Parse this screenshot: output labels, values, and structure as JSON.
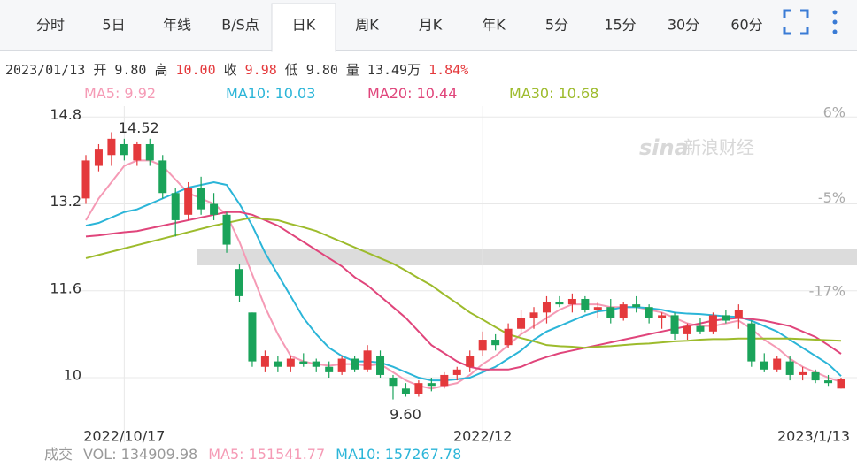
{
  "tabs": [
    "分时",
    "5日",
    "年线",
    "B/S点",
    "日K",
    "周K",
    "月K",
    "年K",
    "5分",
    "15分",
    "30分",
    "60分"
  ],
  "active_tab": 4,
  "quote": {
    "date": "2023/01/13",
    "items": [
      {
        "label": "开",
        "value": "9.80",
        "color": "#333333"
      },
      {
        "label": "高",
        "value": "10.00",
        "color": "#e4393c"
      },
      {
        "label": "收",
        "value": "9.98",
        "color": "#e4393c"
      },
      {
        "label": "低",
        "value": "9.80",
        "color": "#333333"
      },
      {
        "label": "量",
        "value": "13.49万",
        "color": "#333333"
      }
    ],
    "change": "1.84%",
    "change_color": "#e4393c"
  },
  "watermark": {
    "logo": "sina",
    "name": "新浪财经"
  },
  "chart_data": {
    "type": "candlestick",
    "categories": [
      null,
      null,
      null,
      "2022/10/17",
      null,
      null,
      null,
      null,
      null,
      null,
      null,
      null,
      null,
      null,
      null,
      null,
      null,
      null,
      null,
      null,
      null,
      null,
      null,
      null,
      null,
      null,
      null,
      null,
      null,
      null,
      null,
      "2022/12",
      null,
      null,
      null,
      null,
      null,
      null,
      null,
      null,
      null,
      null,
      null,
      null,
      null,
      null,
      null,
      null,
      null,
      null,
      null,
      null,
      null,
      null,
      null,
      null,
      null,
      null,
      null,
      "2023/1/13"
    ],
    "open": [
      13.3,
      13.9,
      14.1,
      14.3,
      14.0,
      14.3,
      14.0,
      13.4,
      13.0,
      13.5,
      13.2,
      13.0,
      12.0,
      11.2,
      10.2,
      10.3,
      10.2,
      10.3,
      10.3,
      10.2,
      10.1,
      10.35,
      10.15,
      10.4,
      10.0,
      9.8,
      9.7,
      9.9,
      9.85,
      10.05,
      10.2,
      10.5,
      10.7,
      10.6,
      10.9,
      11.1,
      11.2,
      11.4,
      11.35,
      11.45,
      11.25,
      11.3,
      11.1,
      11.35,
      11.3,
      11.1,
      11.15,
      10.8,
      10.95,
      10.85,
      11.15,
      11.1,
      11.0,
      10.3,
      10.15,
      10.3,
      10.05,
      10.1,
      9.95,
      9.8
    ],
    "high": [
      14.1,
      14.3,
      14.52,
      14.4,
      14.35,
      14.4,
      14.1,
      13.5,
      13.6,
      13.7,
      13.4,
      13.05,
      12.1,
      11.2,
      10.5,
      10.4,
      10.4,
      10.45,
      10.35,
      10.3,
      10.4,
      10.4,
      10.6,
      10.5,
      10.05,
      9.9,
      9.95,
      10.0,
      10.1,
      10.2,
      10.5,
      10.85,
      10.8,
      11.0,
      11.25,
      11.3,
      11.5,
      11.5,
      11.55,
      11.5,
      11.4,
      11.45,
      11.4,
      11.5,
      11.35,
      11.2,
      11.2,
      11.0,
      11.1,
      11.2,
      11.25,
      11.35,
      11.05,
      10.45,
      10.4,
      10.4,
      10.2,
      10.15,
      10.05,
      10.0
    ],
    "low": [
      13.2,
      13.8,
      13.9,
      14.0,
      13.9,
      13.9,
      13.3,
      12.6,
      12.9,
      13.0,
      12.9,
      12.3,
      11.4,
      10.2,
      10.1,
      10.1,
      10.1,
      10.2,
      10.1,
      10.0,
      10.05,
      10.1,
      10.1,
      10.0,
      9.6,
      9.65,
      9.65,
      9.75,
      9.8,
      9.95,
      10.1,
      10.4,
      10.5,
      10.55,
      10.8,
      10.9,
      11.0,
      11.3,
      11.2,
      11.2,
      11.1,
      11.0,
      11.05,
      11.2,
      11.0,
      10.9,
      10.7,
      10.7,
      10.8,
      10.8,
      11.0,
      10.9,
      10.2,
      10.1,
      10.1,
      9.95,
      9.95,
      9.9,
      9.85,
      9.8
    ],
    "close": [
      14.0,
      14.2,
      14.4,
      14.1,
      14.3,
      14.0,
      13.4,
      12.9,
      13.5,
      13.1,
      13.0,
      12.45,
      11.5,
      10.3,
      10.4,
      10.2,
      10.35,
      10.25,
      10.2,
      10.1,
      10.35,
      10.15,
      10.5,
      10.05,
      9.85,
      9.7,
      9.9,
      9.85,
      10.05,
      10.15,
      10.4,
      10.7,
      10.6,
      10.9,
      11.1,
      11.2,
      11.4,
      11.35,
      11.45,
      11.25,
      11.3,
      11.1,
      11.35,
      11.3,
      11.1,
      11.15,
      10.8,
      10.95,
      10.85,
      11.15,
      11.05,
      11.25,
      10.3,
      10.15,
      10.35,
      10.05,
      10.1,
      9.95,
      9.9,
      9.98
    ],
    "up_color": "#e4393c",
    "down_color": "#1aa35a",
    "series": [
      {
        "name": "MA5",
        "color": "#f59ab5",
        "values": [
          12.9,
          13.3,
          13.6,
          13.9,
          14.0,
          14.0,
          13.9,
          13.65,
          13.4,
          13.3,
          13.2,
          13.0,
          12.5,
          11.9,
          11.3,
          10.8,
          10.4,
          10.3,
          10.25,
          10.22,
          10.25,
          10.25,
          10.22,
          10.25,
          10.1,
          9.95,
          9.85,
          9.8,
          9.85,
          9.9,
          10.05,
          10.25,
          10.4,
          10.6,
          10.8,
          10.95,
          11.1,
          11.25,
          11.35,
          11.35,
          11.35,
          11.3,
          11.3,
          11.3,
          11.25,
          11.2,
          11.1,
          11.0,
          10.95,
          10.95,
          11.0,
          11.05,
          10.9,
          10.7,
          10.55,
          10.35,
          10.2,
          10.1,
          10.0,
          9.92
        ]
      },
      {
        "name": "MA10",
        "color": "#2bb5d8",
        "values": [
          12.8,
          12.85,
          12.95,
          13.05,
          13.1,
          13.2,
          13.3,
          13.4,
          13.5,
          13.55,
          13.6,
          13.55,
          13.2,
          12.8,
          12.3,
          11.9,
          11.5,
          11.1,
          10.8,
          10.55,
          10.4,
          10.3,
          10.3,
          10.28,
          10.2,
          10.1,
          10.0,
          9.95,
          9.95,
          9.97,
          10.0,
          10.1,
          10.2,
          10.35,
          10.5,
          10.7,
          10.85,
          10.95,
          11.05,
          11.15,
          11.22,
          11.25,
          11.3,
          11.3,
          11.28,
          11.25,
          11.2,
          11.18,
          11.17,
          11.15,
          11.13,
          11.12,
          11.05,
          10.95,
          10.85,
          10.7,
          10.55,
          10.4,
          10.25,
          10.03
        ]
      },
      {
        "name": "MA20",
        "color": "#e0457b",
        "values": [
          12.6,
          12.62,
          12.65,
          12.68,
          12.7,
          12.75,
          12.8,
          12.85,
          12.9,
          12.95,
          13.0,
          13.05,
          13.05,
          13.0,
          12.9,
          12.8,
          12.65,
          12.5,
          12.35,
          12.2,
          12.05,
          11.85,
          11.7,
          11.5,
          11.3,
          11.1,
          10.85,
          10.6,
          10.45,
          10.3,
          10.2,
          10.15,
          10.15,
          10.15,
          10.2,
          10.3,
          10.38,
          10.45,
          10.5,
          10.55,
          10.6,
          10.65,
          10.7,
          10.75,
          10.8,
          10.85,
          10.9,
          10.95,
          11.0,
          11.05,
          11.08,
          11.1,
          11.08,
          11.05,
          11.0,
          10.95,
          10.85,
          10.75,
          10.6,
          10.44
        ]
      },
      {
        "name": "MA30",
        "color": "#9dbb2c",
        "values": [
          12.2,
          12.26,
          12.32,
          12.38,
          12.44,
          12.5,
          12.56,
          12.62,
          12.68,
          12.74,
          12.8,
          12.85,
          12.9,
          12.95,
          12.92,
          12.9,
          12.83,
          12.77,
          12.7,
          12.6,
          12.5,
          12.4,
          12.3,
          12.2,
          12.1,
          11.97,
          11.83,
          11.7,
          11.53,
          11.37,
          11.2,
          11.07,
          10.93,
          10.8,
          10.73,
          10.67,
          10.6,
          10.58,
          10.57,
          10.55,
          10.57,
          10.58,
          10.6,
          10.62,
          10.63,
          10.65,
          10.67,
          10.68,
          10.7,
          10.71,
          10.71,
          10.72,
          10.72,
          10.72,
          10.72,
          10.72,
          10.71,
          10.7,
          10.69,
          10.68
        ]
      }
    ],
    "ylim": [
      9.3,
      15.0
    ],
    "yticks": [
      14.8,
      13.2,
      11.6,
      10
    ],
    "y2lim": [
      -32.95,
      6.91
    ],
    "y2ticks": [
      {
        "value": 6,
        "label": "6%"
      },
      {
        "value": -5,
        "label": "-5%"
      },
      {
        "value": -17,
        "label": "-17%"
      }
    ],
    "grid": true,
    "annotations": [
      14.52,
      {
        "value": 9.6,
        "label": "9.60"
      }
    ],
    "volume_legend": {
      "label": "成交",
      "items": [
        {
          "name": "VOL",
          "value": 134909.98,
          "color": "#999999"
        },
        {
          "name": "MA5",
          "value": 151541.77,
          "color": "#f59ab5"
        },
        {
          "name": "MA10",
          "value": 157267.78,
          "color": "#2bb5d8"
        }
      ]
    }
  }
}
